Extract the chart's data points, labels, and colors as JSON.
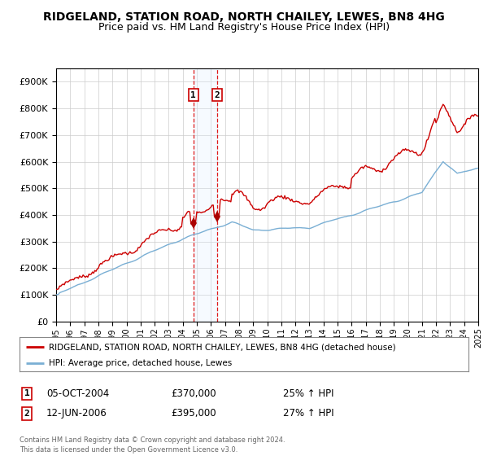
{
  "title": "RIDGELAND, STATION ROAD, NORTH CHAILEY, LEWES, BN8 4HG",
  "subtitle": "Price paid vs. HM Land Registry's House Price Index (HPI)",
  "ylim": [
    0,
    950000
  ],
  "yticks": [
    0,
    100000,
    200000,
    300000,
    400000,
    500000,
    600000,
    700000,
    800000,
    900000
  ],
  "ytick_labels": [
    "£0",
    "£100K",
    "£200K",
    "£300K",
    "£400K",
    "£500K",
    "£600K",
    "£700K",
    "£800K",
    "£900K"
  ],
  "year_start": 1995,
  "year_end": 2025,
  "background_color": "#ffffff",
  "plot_bg_color": "#ffffff",
  "grid_color": "#cccccc",
  "red_line_color": "#cc0000",
  "blue_line_color": "#7aafd4",
  "marker_color": "#aa0000",
  "vline_color": "#dd0000",
  "vspan_color": "#ddeeff",
  "transaction1_year": 2004.75,
  "transaction2_year": 2006.44,
  "transaction1_price": 370000,
  "transaction2_price": 395000,
  "transaction1_date": "05-OCT-2004",
  "transaction2_date": "12-JUN-2006",
  "transaction1_hpi": "25% ↑ HPI",
  "transaction2_hpi": "27% ↑ HPI",
  "legend1": "RIDGELAND, STATION ROAD, NORTH CHAILEY, LEWES, BN8 4HG (detached house)",
  "legend2": "HPI: Average price, detached house, Lewes",
  "footer": "Contains HM Land Registry data © Crown copyright and database right 2024.\nThis data is licensed under the Open Government Licence v3.0.",
  "title_fontsize": 10,
  "subtitle_fontsize": 9
}
